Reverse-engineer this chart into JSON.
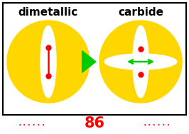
{
  "bg_color": "#ffffff",
  "border_color": "#000000",
  "title_left": "dimetallic",
  "title_right": "carbide",
  "circle_color": "#FFD700",
  "ellipse_color": "#ffffff",
  "dot_color": "#ff0000",
  "line_color": "#ff0000",
  "arrow_color": "#00cc00",
  "label_86_color": "#ff0000",
  "label_86": "86",
  "dots_left": "......",
  "dots_right": "......",
  "figw": 2.66,
  "figh": 1.89,
  "dpi": 100
}
